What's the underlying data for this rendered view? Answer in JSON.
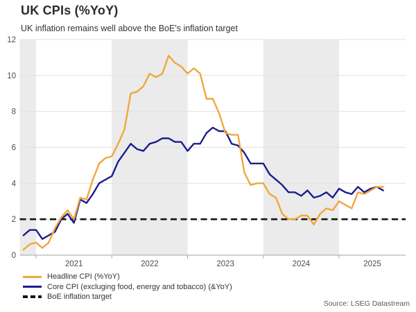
{
  "header": {
    "title": "UK CPIs (%YoY)",
    "subtitle": "UK inflation remains well above the BoE's inflation target"
  },
  "source": "Source: LSEG Datastream",
  "colors": {
    "headline": "#F0A73B",
    "core": "#1C1C8F",
    "target": "#141414",
    "band": "#EBEBEB",
    "gridline": "#E0E0E0",
    "axis": "#A3A3A3"
  },
  "legend": [
    {
      "label": "Headline CPI (%YoY)",
      "color": "#F0A73B",
      "style": "solid"
    },
    {
      "label": "Core CPI (excluging food, energy and tobacco) (&YoY)",
      "color": "#1C1C8F",
      "style": "solid"
    },
    {
      "label": "BoE inflation target",
      "color": "#141414",
      "style": "dashed"
    }
  ],
  "chart_data": {
    "type": "line",
    "title": "UK CPIs (%YoY)",
    "subtitle": "UK inflation remains well above the BoE's inflation target",
    "frequency": "monthly",
    "start_month": "2020-11",
    "end_month": "2025-08",
    "ylim": [
      0,
      12
    ],
    "y_ticks": [
      0,
      2,
      4,
      6,
      8,
      10,
      12
    ],
    "x_tick_labels": [
      "2021",
      "2022",
      "2023",
      "2024",
      "2025"
    ],
    "grid": "horizontal-faint",
    "legend_position": "bottom-left",
    "shaded_band_years": [
      "2020 (partial)",
      "2022",
      "2024"
    ],
    "target_line": {
      "value": 2,
      "label": "BoE inflation target",
      "style": "dashed"
    },
    "months": [
      "2020-11",
      "2020-12",
      "2021-01",
      "2021-02",
      "2021-03",
      "2021-04",
      "2021-05",
      "2021-06",
      "2021-07",
      "2021-08",
      "2021-09",
      "2021-10",
      "2021-11",
      "2021-12",
      "2022-01",
      "2022-02",
      "2022-03",
      "2022-04",
      "2022-05",
      "2022-06",
      "2022-07",
      "2022-08",
      "2022-09",
      "2022-10",
      "2022-11",
      "2022-12",
      "2023-01",
      "2023-02",
      "2023-03",
      "2023-04",
      "2023-05",
      "2023-06",
      "2023-07",
      "2023-08",
      "2023-09",
      "2023-10",
      "2023-11",
      "2023-12",
      "2024-01",
      "2024-02",
      "2024-03",
      "2024-04",
      "2024-05",
      "2024-06",
      "2024-07",
      "2024-08",
      "2024-09",
      "2024-10",
      "2024-11",
      "2024-12",
      "2025-01",
      "2025-02",
      "2025-03",
      "2025-04",
      "2025-05",
      "2025-06",
      "2025-07",
      "2025-08"
    ],
    "series": [
      {
        "name": "Headline CPI (%YoY)",
        "color": "#F0A73B",
        "values": [
          0.3,
          0.6,
          0.7,
          0.4,
          0.7,
          1.5,
          2.1,
          2.5,
          2.0,
          3.2,
          3.1,
          4.2,
          5.1,
          5.4,
          5.5,
          6.2,
          7.0,
          9.0,
          9.1,
          9.4,
          10.1,
          9.9,
          10.1,
          11.1,
          10.7,
          10.5,
          10.1,
          10.4,
          10.1,
          8.7,
          8.7,
          7.9,
          6.8,
          6.7,
          6.7,
          4.6,
          3.9,
          4.0,
          4.0,
          3.4,
          3.2,
          2.3,
          2.0,
          2.0,
          2.2,
          2.2,
          1.7,
          2.3,
          2.6,
          2.5,
          3.0,
          2.8,
          2.6,
          3.5,
          3.4,
          3.6,
          3.8,
          3.8
        ]
      },
      {
        "name": "Core CPI (excluging food, energy and tobacco) (&YoY)",
        "color": "#1C1C8F",
        "values": [
          1.1,
          1.4,
          1.4,
          0.9,
          1.1,
          1.3,
          2.0,
          2.3,
          1.8,
          3.1,
          2.9,
          3.4,
          4.0,
          4.2,
          4.4,
          5.2,
          5.7,
          6.2,
          5.9,
          5.8,
          6.2,
          6.3,
          6.5,
          6.5,
          6.3,
          6.3,
          5.8,
          6.2,
          6.2,
          6.8,
          7.1,
          6.9,
          6.9,
          6.2,
          6.1,
          5.7,
          5.1,
          5.1,
          5.1,
          4.5,
          4.2,
          3.9,
          3.5,
          3.5,
          3.3,
          3.6,
          3.2,
          3.3,
          3.5,
          3.2,
          3.7,
          3.5,
          3.4,
          3.8,
          3.5,
          3.7,
          3.8,
          3.6
        ]
      }
    ]
  }
}
